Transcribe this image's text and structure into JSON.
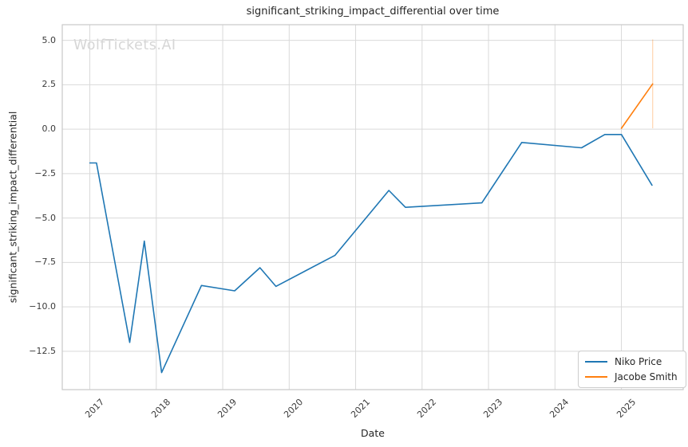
{
  "page": {
    "background": "#ffffff"
  },
  "chart_data": {
    "type": "line",
    "title": "significant_striking_impact_differential over time",
    "xlabel": "Date",
    "ylabel": "significant_striking_impact_differential",
    "watermark": "WolfTickets.AI",
    "grid": true,
    "legend_position": "lower right",
    "xlim": [
      2016.585,
      2025.93
    ],
    "ylim": [
      -14.66,
      5.88
    ],
    "x_ticks": [
      {
        "value": 2017,
        "label": "2017"
      },
      {
        "value": 2018,
        "label": "2018"
      },
      {
        "value": 2019,
        "label": "2019"
      },
      {
        "value": 2020,
        "label": "2020"
      },
      {
        "value": 2021,
        "label": "2021"
      },
      {
        "value": 2022,
        "label": "2022"
      },
      {
        "value": 2023,
        "label": "2023"
      },
      {
        "value": 2024,
        "label": "2024"
      },
      {
        "value": 2025,
        "label": "2025"
      }
    ],
    "y_ticks": [
      {
        "value": 5.0,
        "label": "5.0"
      },
      {
        "value": 2.5,
        "label": "2.5"
      },
      {
        "value": 0.0,
        "label": "0.0"
      },
      {
        "value": -2.5,
        "label": "−2.5"
      },
      {
        "value": -5.0,
        "label": "−5.0"
      },
      {
        "value": -7.5,
        "label": "−7.5"
      },
      {
        "value": -10.0,
        "label": "−10.0"
      },
      {
        "value": -12.5,
        "label": "−12.5"
      }
    ],
    "series": [
      {
        "name": "Niko Price",
        "color": "#1f77b4",
        "points": [
          [
            2017.0,
            -1.9
          ],
          [
            2017.1,
            -1.9
          ],
          [
            2017.6,
            -12.0
          ],
          [
            2017.82,
            -6.3
          ],
          [
            2018.08,
            -13.7
          ],
          [
            2018.68,
            -8.8
          ],
          [
            2019.18,
            -9.1
          ],
          [
            2019.56,
            -7.8
          ],
          [
            2019.8,
            -8.85
          ],
          [
            2020.69,
            -7.1
          ],
          [
            2021.5,
            -3.45
          ],
          [
            2021.75,
            -4.4
          ],
          [
            2022.9,
            -4.15
          ],
          [
            2023.5,
            -0.75
          ],
          [
            2024.4,
            -1.05
          ],
          [
            2024.75,
            -0.3
          ],
          [
            2025.0,
            -0.3
          ],
          [
            2025.46,
            -3.15
          ]
        ]
      },
      {
        "name": "Jacobe Smith",
        "color": "#ff7f0e",
        "points": [
          [
            2025.0,
            0.05
          ],
          [
            2025.47,
            2.55
          ]
        ],
        "error_bar": {
          "x": 2025.47,
          "y_low": 0.05,
          "y_high": 5.05
        }
      }
    ],
    "colors": {
      "grid": "#d9d9d9",
      "spine": "#c9c9c9",
      "text": "#262626",
      "tick_text": "#3b3b3b",
      "watermark": "#d6d6d6",
      "blue": "#1f77b4",
      "orange": "#ff7f0e"
    }
  }
}
